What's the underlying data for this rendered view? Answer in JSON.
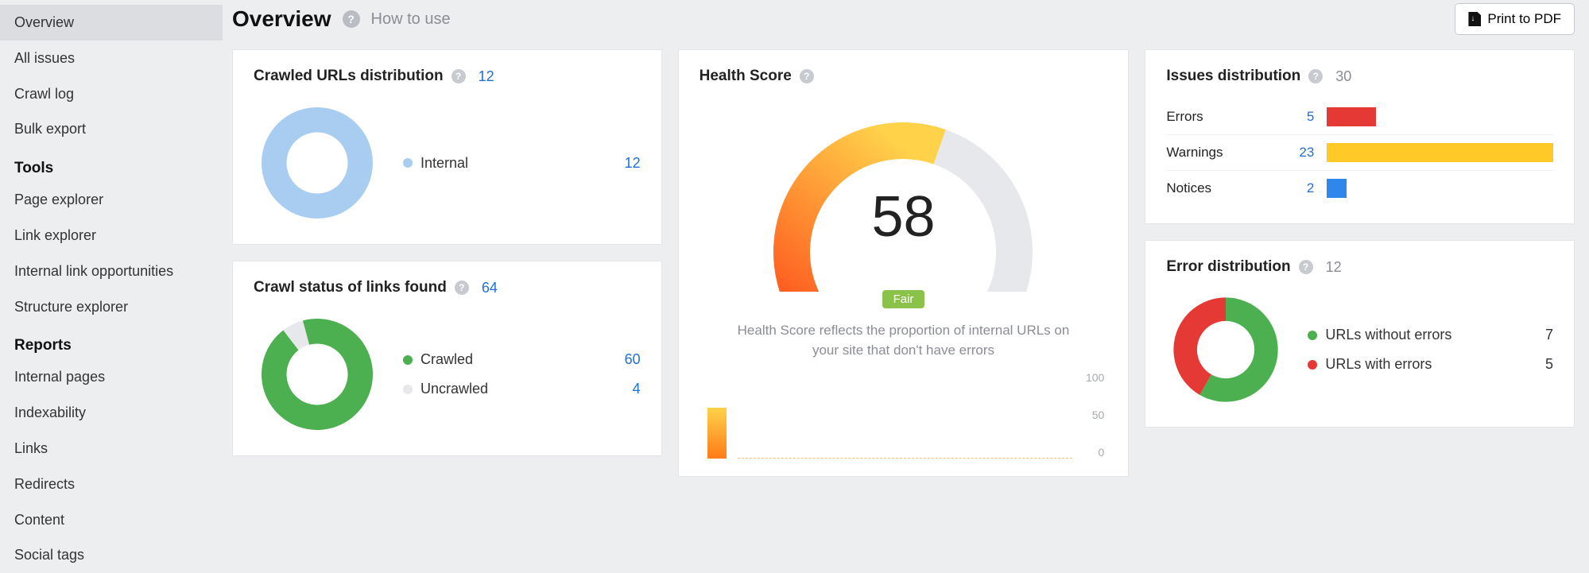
{
  "sidebar": {
    "items": [
      {
        "label": "Overview",
        "active": true
      },
      {
        "label": "All issues",
        "active": false
      },
      {
        "label": "Crawl log",
        "active": false
      },
      {
        "label": "Bulk export",
        "active": false
      }
    ],
    "tools_heading": "Tools",
    "tools": [
      {
        "label": "Page explorer"
      },
      {
        "label": "Link explorer"
      },
      {
        "label": "Internal link opportunities"
      },
      {
        "label": "Structure explorer"
      }
    ],
    "reports_heading": "Reports",
    "reports": [
      {
        "label": "Internal pages"
      },
      {
        "label": "Indexability"
      },
      {
        "label": "Links"
      },
      {
        "label": "Redirects"
      },
      {
        "label": "Content"
      },
      {
        "label": "Social tags"
      }
    ]
  },
  "header": {
    "title": "Overview",
    "howto": "How to use",
    "print_label": "Print to PDF"
  },
  "crawled_urls": {
    "title": "Crawled URLs distribution",
    "total": 12,
    "donut": {
      "type": "donut",
      "slices": [
        {
          "label": "Internal",
          "value": 12,
          "color": "#a9cdf0"
        }
      ],
      "inner_ratio": 0.55,
      "bg": "#ffffff"
    }
  },
  "crawl_status": {
    "title": "Crawl status of links found",
    "total": 64,
    "donut": {
      "type": "donut",
      "slices": [
        {
          "label": "Crawled",
          "value": 60,
          "color": "#4caf50"
        },
        {
          "label": "Uncrawled",
          "value": 4,
          "color": "#e6e8eb"
        }
      ],
      "inner_ratio": 0.55
    }
  },
  "health": {
    "title": "Health Score",
    "score": 58,
    "badge": "Fair",
    "badge_color": "#8bc34a",
    "description": "Health Score reflects the proportion of internal URLs on your site that don't have errors",
    "gauge": {
      "type": "gauge",
      "min": 0,
      "max": 100,
      "value": 58,
      "start_angle": -210,
      "end_angle": 30,
      "track_color": "#e6e8eb",
      "gradient": [
        "#ff5a1f",
        "#ffd24a"
      ],
      "thickness": 46
    },
    "mini": {
      "type": "area",
      "ylim": [
        0,
        100
      ],
      "yticks": [
        0,
        50,
        100
      ],
      "bar_value": 58,
      "bar_gradient": [
        "#ff7a18",
        "#ffd24a"
      ],
      "dash_color": "#ffb870"
    }
  },
  "issues": {
    "title": "Issues distribution",
    "total": 30,
    "rows": [
      {
        "label": "Errors",
        "value": 5,
        "color": "#e53935"
      },
      {
        "label": "Warnings",
        "value": 23,
        "color": "#ffca28"
      },
      {
        "label": "Notices",
        "value": 2,
        "color": "#2f86eb"
      }
    ]
  },
  "error_dist": {
    "title": "Error distribution",
    "total": 12,
    "donut": {
      "type": "donut",
      "slices": [
        {
          "label": "URLs without errors",
          "value": 7,
          "color": "#4caf50"
        },
        {
          "label": "URLs with errors",
          "value": 5,
          "color": "#e53935"
        }
      ],
      "inner_ratio": 0.55
    }
  },
  "colors": {
    "page_bg": "#edeef0",
    "card_bg": "#ffffff",
    "link": "#1e6fdb",
    "muted": "#8a8d93"
  }
}
